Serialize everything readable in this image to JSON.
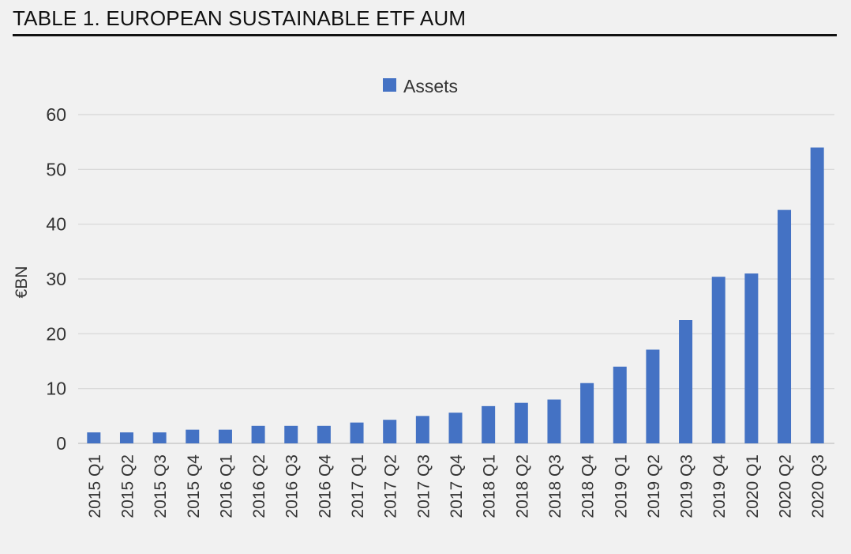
{
  "page": {
    "title": "TABLE 1. EUROPEAN SUSTAINABLE ETF AUM"
  },
  "chart_data": {
    "type": "bar",
    "categories": [
      "2015 Q1",
      "2015 Q2",
      "2015 Q3",
      "2015 Q4",
      "2016 Q1",
      "2016 Q2",
      "2016 Q3",
      "2016 Q4",
      "2017 Q1",
      "2017 Q2",
      "2017 Q3",
      "2017 Q4",
      "2018 Q1",
      "2018 Q2",
      "2018 Q3",
      "2018 Q4",
      "2019 Q1",
      "2019 Q2",
      "2019 Q3",
      "2019 Q4",
      "2020 Q1",
      "2020 Q2",
      "2020 Q3"
    ],
    "series": [
      {
        "name": "Assets",
        "color": "#4472c4",
        "values": [
          2,
          2,
          2,
          2.5,
          2.5,
          3.2,
          3.2,
          3.2,
          3.8,
          4.3,
          5,
          5.6,
          6.8,
          7.4,
          8,
          11,
          14,
          17.1,
          22.5,
          30.4,
          31,
          42.6,
          54
        ]
      }
    ],
    "ylabel": "€BN",
    "xlabel": "",
    "ylim": [
      0,
      60
    ],
    "yticks": [
      0,
      10,
      20,
      30,
      40,
      50,
      60
    ],
    "grid": true,
    "legend": "top-center"
  }
}
